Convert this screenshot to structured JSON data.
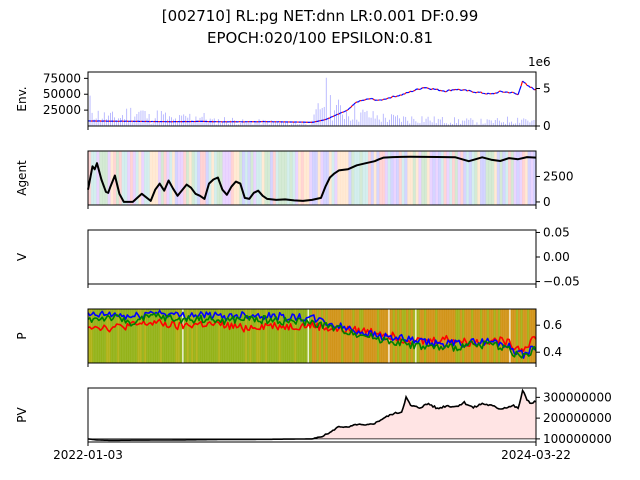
{
  "figure": {
    "title_line1": "[002710] RL:pg NET:dnn LR:0.001 DF:0.99",
    "title_line2": "EPOCH:020/100 EPSILON:0.81"
  },
  "chart_data": [
    {
      "panel": "env",
      "type": "line",
      "ylabel": "Env.",
      "yticks_left": [
        "25000",
        "50000",
        "75000"
      ],
      "ylim_left": [
        0,
        85000
      ],
      "yticks_right": [
        "0",
        "5"
      ],
      "ylim_right": [
        0,
        7200000
      ],
      "right_axis_offset_label": "1e6",
      "series": [
        {
          "role": "price",
          "color": "#0000ff",
          "x": [
            0,
            0.05,
            0.1,
            0.15,
            0.2,
            0.25,
            0.3,
            0.35,
            0.4,
            0.45,
            0.5,
            0.53,
            0.55,
            0.58,
            0.6,
            0.63,
            0.65,
            0.68,
            0.7,
            0.72,
            0.75,
            0.78,
            0.8,
            0.82,
            0.85,
            0.88,
            0.9,
            0.92,
            0.94,
            0.95,
            0.96,
            0.97,
            0.98,
            1.0
          ],
          "y": [
            8000,
            7600,
            7400,
            7000,
            6800,
            7200,
            6600,
            6700,
            6900,
            6400,
            5800,
            10000,
            16000,
            25000,
            38000,
            43000,
            40000,
            46000,
            49000,
            54000,
            61000,
            57000,
            55000,
            58000,
            55000,
            52000,
            50000,
            54000,
            53000,
            52000,
            49000,
            72000,
            63000,
            57000
          ]
        },
        {
          "role": "volume",
          "color": "#0000ff",
          "x": [
            0.01,
            0.02,
            0.04,
            0.07,
            0.09,
            0.12,
            0.14,
            0.16,
            0.19,
            0.22,
            0.25,
            0.28,
            0.31,
            0.35,
            0.4,
            0.45,
            0.5,
            0.53,
            0.54,
            0.55,
            0.56,
            0.58,
            0.6,
            0.62,
            0.64,
            0.67,
            0.7,
            0.72,
            0.74,
            0.77,
            0.8,
            0.83,
            0.86,
            0.9,
            0.93,
            0.96,
            0.97,
            0.99
          ],
          "y": [
            4200000,
            2500000,
            2000000,
            1800000,
            2800000,
            3000000,
            1500000,
            2500000,
            1200000,
            1900000,
            2200000,
            1000000,
            1400000,
            800000,
            900000,
            600000,
            700000,
            6500000,
            5000000,
            4200000,
            3500000,
            3200000,
            2800000,
            2400000,
            2000000,
            1700000,
            1600000,
            1500000,
            1800000,
            1300000,
            1200000,
            1100000,
            1000000,
            900000,
            1200000,
            1500000,
            1800000,
            1000000
          ]
        }
      ]
    },
    {
      "panel": "agent",
      "type": "line",
      "ylabel": "Agent",
      "yticks_right": [
        "0",
        "2500"
      ],
      "ylim": [
        -300,
        5000
      ],
      "series": [
        {
          "role": "stocks",
          "color": "#000000",
          "x": [
            0,
            0.01,
            0.015,
            0.02,
            0.03,
            0.04,
            0.045,
            0.05,
            0.06,
            0.07,
            0.08,
            0.1,
            0.12,
            0.14,
            0.15,
            0.16,
            0.17,
            0.18,
            0.19,
            0.2,
            0.22,
            0.23,
            0.24,
            0.25,
            0.26,
            0.27,
            0.28,
            0.29,
            0.3,
            0.31,
            0.32,
            0.33,
            0.34,
            0.35,
            0.36,
            0.37,
            0.38,
            0.39,
            0.4,
            0.42,
            0.44,
            0.46,
            0.48,
            0.5,
            0.51,
            0.52,
            0.53,
            0.54,
            0.55,
            0.56,
            0.58,
            0.6,
            0.62,
            0.64,
            0.65,
            0.66,
            0.68,
            0.7,
            0.72,
            0.75,
            0.78,
            0.8,
            0.82,
            0.85,
            0.88,
            0.9,
            0.92,
            0.94,
            0.96,
            0.98,
            1.0
          ],
          "y": [
            1200,
            3500,
            3200,
            3800,
            2200,
            1000,
            900,
            1500,
            2600,
            800,
            0,
            0,
            800,
            100,
            1200,
            1800,
            1100,
            2100,
            1300,
            600,
            1700,
            1400,
            800,
            600,
            300,
            1800,
            2200,
            2400,
            1200,
            700,
            1500,
            2000,
            1800,
            400,
            300,
            900,
            1100,
            600,
            300,
            200,
            250,
            150,
            100,
            200,
            300,
            400,
            1500,
            2400,
            2800,
            3100,
            3200,
            3600,
            3800,
            4000,
            4200,
            4350,
            4400,
            4420,
            4430,
            4420,
            4410,
            4400,
            4380,
            4000,
            4380,
            4150,
            4020,
            4300,
            4200,
            4400,
            4350
          ]
        }
      ]
    },
    {
      "panel": "v",
      "type": "line",
      "ylabel": "V",
      "yticks_right": [
        "0.05",
        "0.00",
        "−0.05"
      ],
      "ylim": [
        -0.055,
        0.055
      ],
      "series": []
    },
    {
      "panel": "p",
      "type": "line",
      "ylabel": "P",
      "yticks_right": [
        "0.4",
        "0.6"
      ],
      "ylim": [
        0.32,
        0.72
      ],
      "series": [
        {
          "role": "prob-red",
          "color": "#ff0000",
          "x": [
            0,
            0.05,
            0.1,
            0.15,
            0.2,
            0.25,
            0.3,
            0.35,
            0.4,
            0.45,
            0.5,
            0.55,
            0.6,
            0.65,
            0.7,
            0.75,
            0.8,
            0.85,
            0.9,
            0.93,
            0.95,
            0.97,
            1.0
          ],
          "y": [
            0.6,
            0.58,
            0.6,
            0.62,
            0.59,
            0.61,
            0.6,
            0.58,
            0.6,
            0.59,
            0.6,
            0.57,
            0.56,
            0.55,
            0.5,
            0.48,
            0.5,
            0.47,
            0.49,
            0.48,
            0.45,
            0.42,
            0.52
          ]
        },
        {
          "role": "prob-blue",
          "color": "#0000ff",
          "x": [
            0,
            0.05,
            0.1,
            0.15,
            0.2,
            0.25,
            0.3,
            0.35,
            0.4,
            0.45,
            0.5,
            0.55,
            0.6,
            0.65,
            0.7,
            0.75,
            0.8,
            0.85,
            0.9,
            0.93,
            0.95,
            0.97,
            1.0
          ],
          "y": [
            0.67,
            0.68,
            0.66,
            0.7,
            0.67,
            0.68,
            0.66,
            0.68,
            0.67,
            0.66,
            0.65,
            0.6,
            0.56,
            0.52,
            0.5,
            0.47,
            0.46,
            0.47,
            0.48,
            0.46,
            0.42,
            0.38,
            0.44
          ]
        },
        {
          "role": "prob-green",
          "color": "#008000",
          "x": [
            0,
            0.05,
            0.1,
            0.15,
            0.2,
            0.25,
            0.3,
            0.35,
            0.4,
            0.45,
            0.5,
            0.55,
            0.6,
            0.65,
            0.7,
            0.75,
            0.8,
            0.85,
            0.9,
            0.93,
            0.95,
            0.97,
            1.0
          ],
          "y": [
            0.64,
            0.66,
            0.62,
            0.67,
            0.64,
            0.65,
            0.63,
            0.65,
            0.64,
            0.63,
            0.62,
            0.58,
            0.54,
            0.5,
            0.47,
            0.44,
            0.43,
            0.45,
            0.46,
            0.44,
            0.4,
            0.36,
            0.42
          ]
        }
      ]
    },
    {
      "panel": "pv",
      "type": "area",
      "ylabel": "PV",
      "yticks_right": [
        "100000000",
        "200000000",
        "300000000"
      ],
      "ylim": [
        85000000,
        345000000
      ],
      "xticks": [
        "2022-01-03",
        "2024-03-22"
      ],
      "series": [
        {
          "role": "portfolio-value",
          "color": "#000000",
          "fill": "#ffe4e4",
          "x": [
            0,
            0.02,
            0.05,
            0.1,
            0.2,
            0.3,
            0.4,
            0.5,
            0.52,
            0.54,
            0.56,
            0.58,
            0.6,
            0.62,
            0.64,
            0.66,
            0.68,
            0.7,
            0.71,
            0.72,
            0.74,
            0.76,
            0.78,
            0.8,
            0.82,
            0.84,
            0.86,
            0.88,
            0.9,
            0.92,
            0.94,
            0.95,
            0.96,
            0.97,
            0.98,
            0.99,
            1.0
          ],
          "y": [
            100000000,
            95000000,
            93000000,
            94000000,
            95000000,
            97000000,
            98000000,
            100000000,
            110000000,
            130000000,
            160000000,
            155000000,
            170000000,
            165000000,
            175000000,
            200000000,
            220000000,
            230000000,
            300000000,
            260000000,
            250000000,
            270000000,
            245000000,
            260000000,
            255000000,
            275000000,
            250000000,
            270000000,
            260000000,
            245000000,
            255000000,
            260000000,
            245000000,
            330000000,
            290000000,
            270000000,
            280000000
          ]
        }
      ]
    }
  ]
}
